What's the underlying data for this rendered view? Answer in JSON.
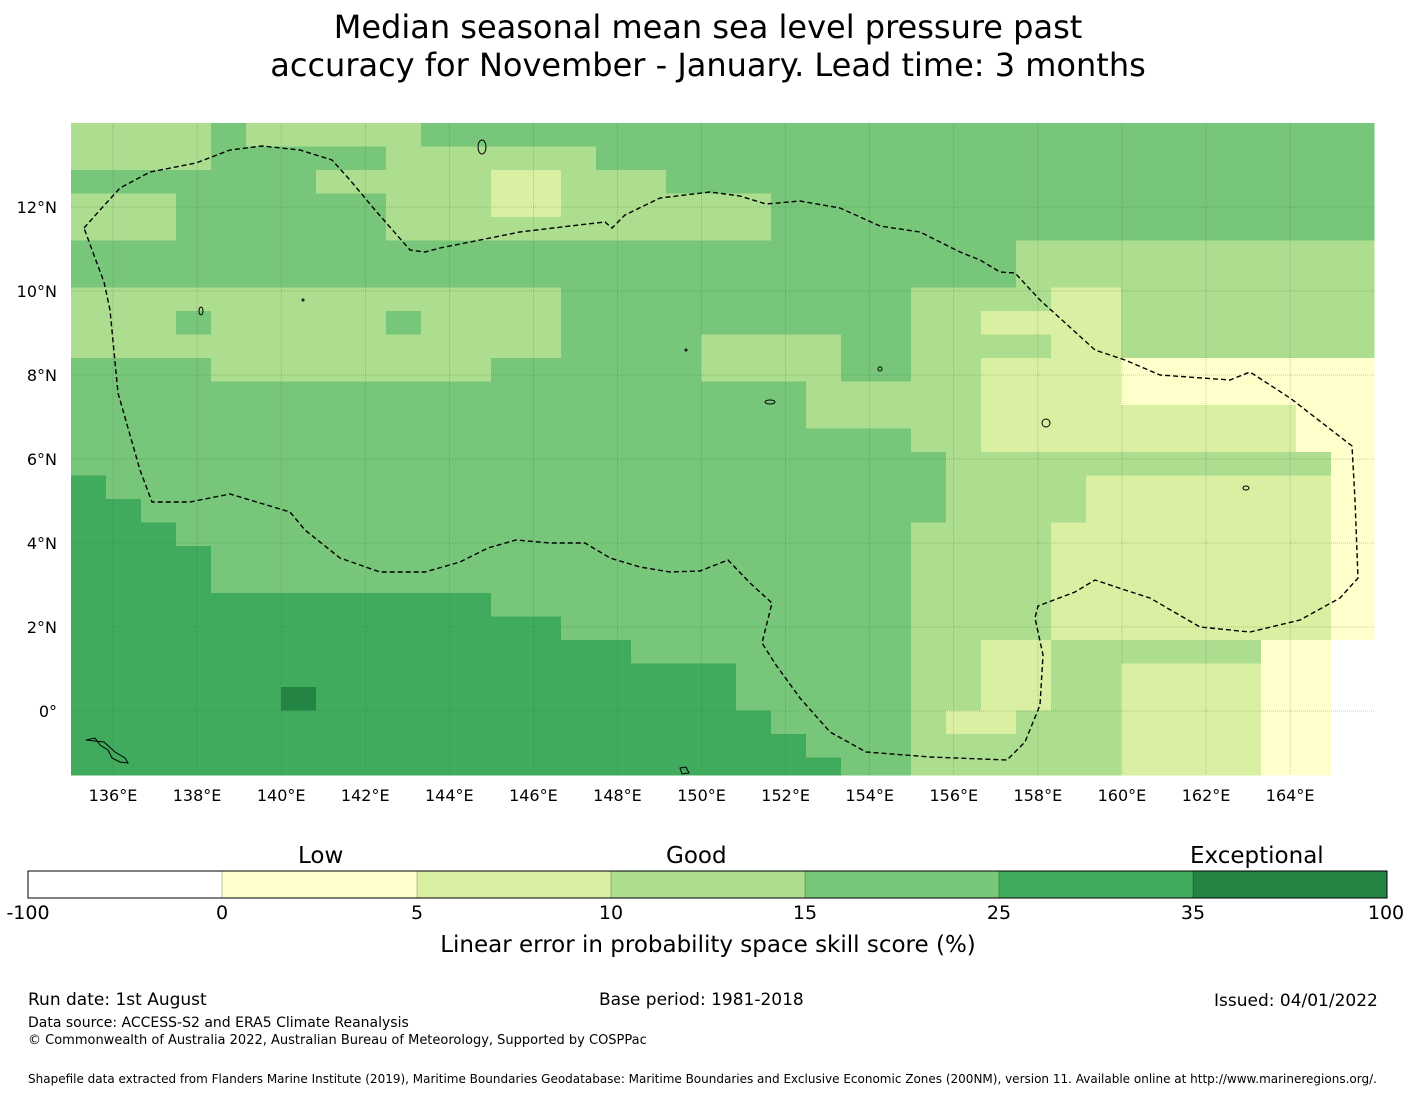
{
  "title": {
    "line1": "Median seasonal mean sea level pressure past",
    "line2": "accuracy for November - January. Lead time: 3 months"
  },
  "map": {
    "lon_labels": [
      "136°E",
      "138°E",
      "140°E",
      "142°E",
      "144°E",
      "146°E",
      "148°E",
      "150°E",
      "152°E",
      "154°E",
      "156°E",
      "158°E",
      "160°E",
      "162°E",
      "164°E"
    ],
    "lat_labels": [
      "12°N",
      "10°N",
      "8°N",
      "6°N",
      "4°N",
      "2°N",
      "0°"
    ],
    "lon_values": [
      136,
      138,
      140,
      142,
      144,
      146,
      148,
      150,
      152,
      154,
      156,
      158,
      160,
      162,
      164
    ],
    "lat_values": [
      12,
      10,
      8,
      6,
      4,
      2,
      0
    ],
    "lon_range": [
      135,
      166
    ],
    "lat_range": [
      -1.5,
      14
    ],
    "colors": [
      "#ffffff",
      "#ffffcc",
      "#d9f0a3",
      "#addd8e",
      "#78c679",
      "#41ab5d",
      "#238443"
    ],
    "boundary_line": "dashed"
  },
  "colorbar": {
    "category_words": [
      "Low",
      "Good",
      "Exceptional"
    ],
    "ticks": [
      "-100",
      "0",
      "5",
      "10",
      "15",
      "25",
      "35",
      "100"
    ],
    "colors": [
      "#ffffff",
      "#ffffcc",
      "#d9f0a3",
      "#addd8e",
      "#78c679",
      "#41ab5d",
      "#238443"
    ],
    "label": "Linear error in probability space skill score (%)"
  },
  "footer": {
    "run_date": "Run date: 1st August",
    "base_period": "Base period: 1981-2018",
    "issued": "Issued: 04/01/2022",
    "data_source": "Data source: ACCESS-S2 and ERA5 Climate Reanalysis",
    "copyright": "© Commonwealth of Australia 2022, Australian Bureau of Meteorology, Supported by COSPPac",
    "shapefile": "Shapefile data extracted from Flanders Marine Institute (2019), Maritime Boundaries Geodatabase: Maritime Boundaries and Exclusive Economic Zones (200NM), version 11. Available online at http://www.marineregions.org/."
  }
}
